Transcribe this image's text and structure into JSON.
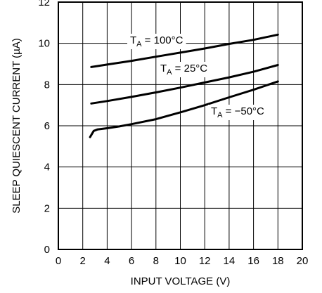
{
  "chart_data": {
    "type": "line",
    "xlabel": "INPUT VOLTAGE (V)",
    "ylabel": "SLEEP QUIESCENT CURRENT (µA)",
    "xlim": [
      0,
      20
    ],
    "ylim": [
      0,
      12
    ],
    "xticks": [
      0,
      2,
      4,
      6,
      8,
      10,
      12,
      14,
      16,
      18,
      20
    ],
    "yticks": [
      0,
      2,
      4,
      6,
      8,
      10,
      12
    ],
    "grid": true,
    "series": [
      {
        "name_main": "T",
        "name_sub": "A",
        "name_rest": " = 100°C",
        "x": [
          2.7,
          4,
          6,
          8,
          10,
          12,
          14,
          16,
          18
        ],
        "y": [
          8.85,
          8.97,
          9.15,
          9.35,
          9.55,
          9.75,
          9.97,
          10.17,
          10.42
        ]
      },
      {
        "name_main": "T",
        "name_sub": "A",
        "name_rest": " = 25°C",
        "x": [
          2.7,
          4,
          6,
          8,
          10,
          12,
          14,
          16,
          18
        ],
        "y": [
          7.08,
          7.2,
          7.4,
          7.62,
          7.85,
          8.1,
          8.35,
          8.62,
          8.95
        ]
      },
      {
        "name_main": "T",
        "name_sub": "A",
        "name_rest": " = −50°C",
        "x": [
          2.6,
          2.9,
          3.2,
          4,
          5,
          6,
          8,
          10,
          12,
          14,
          16,
          18
        ],
        "y": [
          5.45,
          5.75,
          5.82,
          5.88,
          5.97,
          6.08,
          6.32,
          6.65,
          7.0,
          7.38,
          7.75,
          8.15
        ]
      }
    ]
  }
}
